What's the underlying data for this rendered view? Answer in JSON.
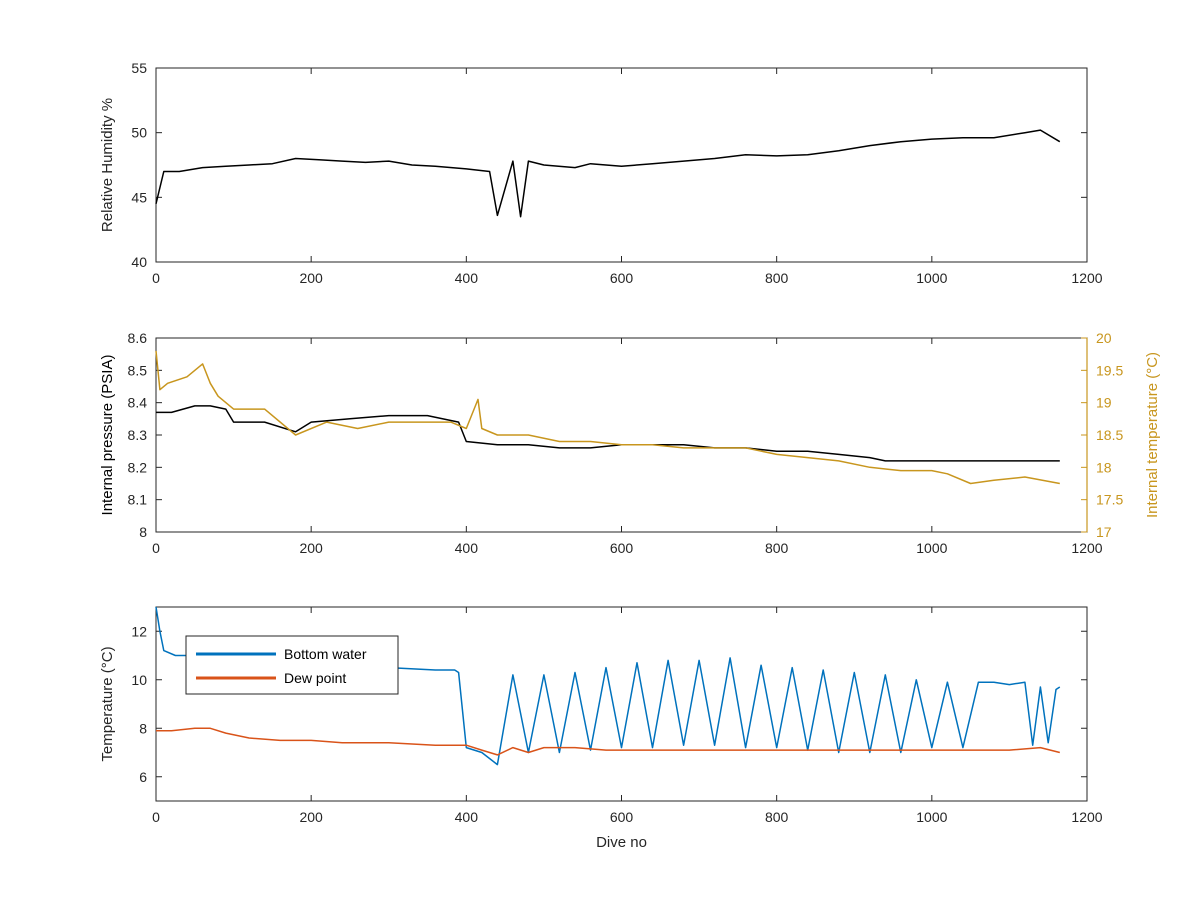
{
  "chart_data": [
    {
      "type": "line",
      "title": "",
      "xlabel": "",
      "ylabel": "Relative Humidity %",
      "xlim": [
        0,
        1200
      ],
      "ylim": [
        40,
        55
      ],
      "xticks": [
        "0",
        "200",
        "400",
        "600",
        "800",
        "1000",
        "1200"
      ],
      "yticks": [
        "40",
        "45",
        "50",
        "55"
      ],
      "series": [
        {
          "name": "",
          "color": "#000000",
          "x": [
            0,
            10,
            30,
            60,
            90,
            120,
            150,
            180,
            210,
            240,
            270,
            300,
            330,
            360,
            400,
            430,
            440,
            460,
            470,
            480,
            500,
            540,
            560,
            600,
            640,
            680,
            720,
            760,
            800,
            840,
            880,
            920,
            960,
            1000,
            1040,
            1080,
            1120,
            1140,
            1165
          ],
          "y": [
            44.5,
            47.0,
            47.0,
            47.3,
            47.4,
            47.5,
            47.6,
            48.0,
            47.9,
            47.8,
            47.7,
            47.8,
            47.5,
            47.4,
            47.2,
            47.0,
            43.6,
            47.8,
            43.5,
            47.8,
            47.5,
            47.3,
            47.6,
            47.4,
            47.6,
            47.8,
            48.0,
            48.3,
            48.2,
            48.3,
            48.6,
            49.0,
            49.3,
            49.5,
            49.6,
            49.6,
            50.0,
            50.2,
            49.3
          ]
        }
      ]
    },
    {
      "type": "line",
      "title": "",
      "xlabel": "",
      "ylabel": "Internal pressure (PSIA)",
      "y2label": "Internal temperature (°C)",
      "xlim": [
        0,
        1200
      ],
      "ylim": [
        8.0,
        8.6
      ],
      "y2lim": [
        17,
        20
      ],
      "xticks": [
        "0",
        "200",
        "400",
        "600",
        "800",
        "1000",
        "1200"
      ],
      "yticks": [
        "8",
        "8.1",
        "8.2",
        "8.3",
        "8.4",
        "8.5",
        "8.6"
      ],
      "y2ticks": [
        "17",
        "17.5",
        "18",
        "18.5",
        "19",
        "19.5",
        "20"
      ],
      "series": [
        {
          "name": "",
          "axis": "left",
          "color": "#000000",
          "x": [
            0,
            20,
            50,
            70,
            90,
            100,
            140,
            180,
            200,
            250,
            300,
            350,
            390,
            400,
            440,
            480,
            520,
            560,
            600,
            640,
            680,
            720,
            760,
            800,
            840,
            880,
            920,
            940,
            980,
            1000,
            1040,
            1080,
            1120,
            1165
          ],
          "y": [
            8.37,
            8.37,
            8.39,
            8.39,
            8.38,
            8.34,
            8.34,
            8.31,
            8.34,
            8.35,
            8.36,
            8.36,
            8.34,
            8.28,
            8.27,
            8.27,
            8.26,
            8.26,
            8.27,
            8.27,
            8.27,
            8.26,
            8.26,
            8.25,
            8.25,
            8.24,
            8.23,
            8.22,
            8.22,
            8.22,
            8.22,
            8.22,
            8.22,
            8.22
          ]
        },
        {
          "name": "",
          "axis": "right",
          "color": "#C8961E",
          "x": [
            0,
            5,
            15,
            40,
            60,
            70,
            80,
            100,
            140,
            180,
            220,
            260,
            300,
            340,
            380,
            400,
            415,
            420,
            440,
            480,
            520,
            560,
            600,
            640,
            680,
            720,
            760,
            800,
            840,
            880,
            920,
            960,
            1000,
            1020,
            1050,
            1080,
            1120,
            1165
          ],
          "y": [
            19.8,
            19.2,
            19.3,
            19.4,
            19.6,
            19.3,
            19.1,
            18.9,
            18.9,
            18.5,
            18.7,
            18.6,
            18.7,
            18.7,
            18.7,
            18.6,
            19.05,
            18.6,
            18.5,
            18.5,
            18.4,
            18.4,
            18.35,
            18.35,
            18.3,
            18.3,
            18.3,
            18.2,
            18.15,
            18.1,
            18.0,
            17.95,
            17.95,
            17.9,
            17.75,
            17.8,
            17.85,
            17.75
          ]
        }
      ]
    },
    {
      "type": "line",
      "title": "",
      "xlabel": "Dive no",
      "ylabel": "Temperature (°C)",
      "xlim": [
        0,
        1200
      ],
      "ylim": [
        5,
        13
      ],
      "xticks": [
        "0",
        "200",
        "400",
        "600",
        "800",
        "1000",
        "1200"
      ],
      "yticks": [
        "6",
        "8",
        "10",
        "12"
      ],
      "legend": "top-left",
      "series": [
        {
          "name": "Bottom water",
          "color": "#0072BD",
          "x": [
            0,
            5,
            10,
            25,
            40,
            60,
            80,
            120,
            160,
            200,
            240,
            300,
            360,
            385,
            390,
            400,
            420,
            440,
            460,
            480,
            500,
            520,
            540,
            560,
            580,
            600,
            620,
            640,
            660,
            680,
            700,
            720,
            740,
            760,
            780,
            800,
            820,
            840,
            860,
            880,
            900,
            920,
            940,
            960,
            980,
            1000,
            1020,
            1040,
            1060,
            1080,
            1100,
            1120,
            1130,
            1140,
            1150,
            1160,
            1165
          ],
          "y": [
            13.0,
            12.0,
            11.2,
            11.0,
            11.0,
            11.1,
            10.9,
            10.9,
            10.8,
            10.7,
            10.6,
            10.5,
            10.4,
            10.4,
            10.3,
            7.2,
            7.0,
            6.5,
            10.2,
            7.0,
            10.2,
            7.0,
            10.3,
            7.1,
            10.5,
            7.2,
            10.7,
            7.2,
            10.8,
            7.3,
            10.8,
            7.3,
            10.9,
            7.2,
            10.6,
            7.2,
            10.5,
            7.1,
            10.4,
            7.0,
            10.3,
            7.0,
            10.2,
            7.0,
            10.0,
            7.2,
            9.9,
            7.2,
            9.9,
            9.9,
            9.8,
            9.9,
            7.3,
            9.7,
            7.4,
            9.6,
            9.7
          ]
        },
        {
          "name": "Dew point",
          "color": "#D95319",
          "x": [
            0,
            20,
            50,
            70,
            90,
            120,
            160,
            200,
            240,
            300,
            360,
            400,
            420,
            440,
            460,
            480,
            500,
            540,
            580,
            620,
            660,
            700,
            740,
            780,
            820,
            860,
            900,
            940,
            980,
            1020,
            1060,
            1100,
            1140,
            1165
          ],
          "y": [
            7.9,
            7.9,
            8.0,
            8.0,
            7.8,
            7.6,
            7.5,
            7.5,
            7.4,
            7.4,
            7.3,
            7.3,
            7.1,
            6.9,
            7.2,
            7.0,
            7.2,
            7.2,
            7.1,
            7.1,
            7.1,
            7.1,
            7.1,
            7.1,
            7.1,
            7.1,
            7.1,
            7.1,
            7.1,
            7.1,
            7.1,
            7.1,
            7.2,
            7.0
          ]
        }
      ]
    }
  ]
}
